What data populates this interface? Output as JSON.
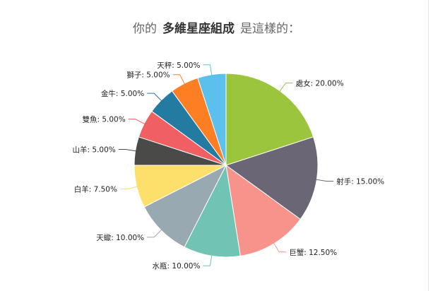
{
  "title": {
    "prefix": "你的",
    "emphasis": "多維星座組成",
    "suffix": "是這樣的："
  },
  "chart_data": {
    "type": "pie",
    "title": "你的 多維星座組成 是這樣的：",
    "slices": [
      {
        "label": "處女",
        "value": 20.0,
        "display": "處女: 20.00%",
        "color": "#9bc53d"
      },
      {
        "label": "射手",
        "value": 15.0,
        "display": "射手: 15.00%",
        "color": "#6b6675"
      },
      {
        "label": "巨蟹",
        "value": 12.5,
        "display": "巨蟹: 12.50%",
        "color": "#f7938a"
      },
      {
        "label": "水瓶",
        "value": 10.0,
        "display": "水瓶: 10.00%",
        "color": "#71c3b3"
      },
      {
        "label": "天蠍",
        "value": 10.0,
        "display": "天蠍: 10.00%",
        "color": "#98a9b2"
      },
      {
        "label": "白羊",
        "value": 7.5,
        "display": "白羊: 7.50%",
        "color": "#fde06b"
      },
      {
        "label": "山羊",
        "value": 5.0,
        "display": "山羊: 5.00%",
        "color": "#4a4a48"
      },
      {
        "label": "雙魚",
        "value": 5.0,
        "display": "雙魚: 5.00%",
        "color": "#f05f61"
      },
      {
        "label": "金牛",
        "value": 5.0,
        "display": "金牛: 5.00%",
        "color": "#237ba1"
      },
      {
        "label": "獅子",
        "value": 5.0,
        "display": "獅子: 5.00%",
        "color": "#fd7e23"
      },
      {
        "label": "天秤",
        "value": 5.0,
        "display": "天秤: 5.00%",
        "color": "#5cc0ed"
      }
    ]
  }
}
